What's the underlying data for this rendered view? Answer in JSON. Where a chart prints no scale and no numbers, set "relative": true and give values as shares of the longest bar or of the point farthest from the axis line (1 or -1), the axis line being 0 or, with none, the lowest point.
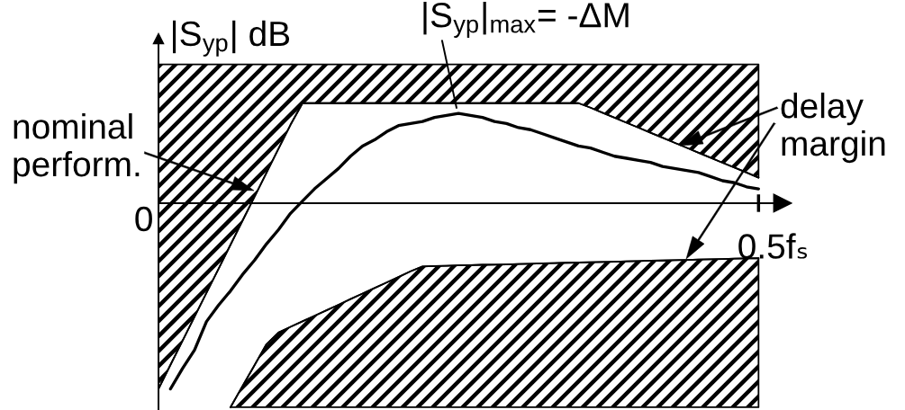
{
  "chart_data": {
    "type": "line",
    "relative": true,
    "ylabel": "|S$_{yp}$| dB",
    "categories": [
      null,
      null,
      null,
      null,
      null,
      null,
      null,
      null,
      null,
      null,
      null,
      null,
      null,
      null,
      null,
      null,
      null,
      null,
      null,
      null,
      null,
      null,
      null,
      null,
      null,
      null,
      null,
      null,
      null,
      null,
      null,
      null,
      null,
      null,
      null,
      null,
      null,
      null,
      null,
      null,
      null,
      null,
      null,
      null,
      null,
      null,
      null,
      null,
      null,
      null,
      null
    ],
    "series": [
      {
        "type": "line",
        "color": "#000000",
        "values": [
          -0.91,
          -0.792,
          -0.675,
          -0.557,
          -0.439,
          -0.322,
          -0.204,
          -0.086,
          0.031,
          0.149,
          0.267,
          0.384,
          0.49,
          0.49,
          0.49,
          0.49,
          0.49,
          0.49,
          0.49,
          0.49,
          0.49,
          0.49,
          0.49,
          0.49,
          0.49,
          0.49,
          0.49,
          0.49,
          0.49,
          0.49,
          0.49,
          0.49,
          0.49,
          0.49,
          0.49,
          0.49,
          0.468,
          0.443,
          0.419,
          0.394,
          0.37,
          0.345,
          0.321,
          0.296,
          0.272,
          0.247,
          0.223,
          0.198,
          0.174,
          0.15,
          0.125
        ],
        "lower": [
          -0.91,
          -0.792,
          -0.675,
          -0.557,
          -0.439,
          -0.322,
          -0.204,
          -0.086,
          0.031,
          0.149,
          0.267,
          0.384,
          0.49,
          0.49,
          0.49,
          0.49,
          0.49,
          0.49,
          0.49,
          0.49,
          0.49,
          0.49,
          0.49,
          0.49,
          0.49,
          0.49,
          0.49,
          0.49,
          0.49,
          0.49,
          0.49,
          0.49,
          0.49,
          0.49,
          0.49,
          0.49,
          0.468,
          0.443,
          0.419,
          0.394,
          0.37,
          0.345,
          0.321,
          0.296,
          0.272,
          0.247,
          0.223,
          0.198,
          0.174,
          0.15,
          0.125
        ],
        "upper": [
          0.68,
          0.68,
          0.68,
          0.68,
          0.68,
          0.68,
          0.68,
          0.68,
          0.68,
          0.68,
          0.68,
          0.68,
          0.68,
          0.68,
          0.68,
          0.68,
          0.68,
          0.68,
          0.68,
          0.68,
          0.68,
          0.68,
          0.68,
          0.68,
          0.68,
          0.68,
          0.68,
          0.68,
          0.68,
          0.68,
          0.68,
          0.68,
          0.68,
          0.68,
          0.68,
          0.68,
          0.68,
          0.68,
          0.68,
          0.68,
          0.68,
          0.68,
          0.68,
          0.68,
          0.68,
          0.68,
          0.68,
          0.68,
          0.68,
          0.68,
          0.68
        ]
      },
      {
        "type": "line",
        "color": "#000000",
        "values": [
          null,
          null,
          null,
          null,
          null,
          null,
          -1,
          -0.897,
          -0.794,
          -0.691,
          -0.634,
          -0.606,
          -0.579,
          -0.552,
          -0.525,
          -0.498,
          -0.47,
          -0.443,
          -0.416,
          -0.389,
          -0.362,
          -0.334,
          -0.31,
          -0.308,
          -0.307,
          -0.305,
          -0.304,
          -0.302,
          -0.301,
          -0.3,
          -0.298,
          -0.297,
          -0.295,
          -0.294,
          -0.292,
          -0.291,
          -0.289,
          -0.288,
          -0.287,
          -0.285,
          -0.284,
          -0.282,
          -0.281,
          -0.279,
          -0.278,
          -0.276,
          -0.275,
          -0.274,
          -0.272,
          -0.271,
          -0.27
        ],
        "lower": [
          null,
          null,
          null,
          null,
          null,
          null,
          -1,
          -1,
          -1,
          -1,
          -1,
          -1,
          -1,
          -1,
          -1,
          -1,
          -1,
          -1,
          -1,
          -1,
          -1,
          -1,
          -1,
          -1,
          -1,
          -1,
          -1,
          -1,
          -1,
          -1,
          -1,
          -1,
          -1,
          -1,
          -1,
          -1,
          -1,
          -1,
          -1,
          -1,
          -1,
          -1,
          -1,
          -1,
          -1,
          -1,
          -1,
          -1,
          -1,
          -1,
          -1
        ],
        "upper": [
          null,
          null,
          null,
          null,
          null,
          null,
          -1,
          -0.897,
          -0.794,
          -0.691,
          -0.634,
          -0.606,
          -0.579,
          -0.552,
          -0.525,
          -0.498,
          -0.47,
          -0.443,
          -0.416,
          -0.389,
          -0.362,
          -0.334,
          -0.31,
          -0.308,
          -0.307,
          -0.305,
          -0.304,
          -0.302,
          -0.301,
          -0.3,
          -0.298,
          -0.297,
          -0.295,
          -0.294,
          -0.292,
          -0.291,
          -0.289,
          -0.288,
          -0.287,
          -0.285,
          -0.284,
          -0.282,
          -0.281,
          -0.279,
          -0.278,
          -0.276,
          -0.275,
          -0.274,
          -0.272,
          -0.271,
          -0.27
        ]
      },
      {
        "type": "line",
        "color": "#000000",
        "values": [
          null,
          -0.91,
          -0.81,
          -0.72,
          -0.58,
          -0.5,
          -0.43,
          -0.35,
          -0.28,
          -0.2,
          -0.13,
          -0.05,
          0.01,
          0.07,
          0.12,
          0.17,
          0.23,
          0.28,
          0.31,
          0.35,
          0.38,
          0.39,
          0.4,
          0.42,
          0.43,
          0.44,
          0.43,
          0.42,
          0.4,
          0.39,
          0.37,
          0.36,
          0.34,
          0.32,
          0.3,
          0.28,
          0.27,
          0.25,
          0.23,
          0.22,
          0.21,
          0.2,
          0.18,
          0.17,
          0.16,
          0.15,
          0.13,
          0.11,
          0.1,
          0.08,
          0.07
        ]
      }
    ],
    "annotations": [
      "|S$_{yp}$|$_{max}$= -ΔM",
      "nominal\nperform.",
      "delay\nmargin",
      "0",
      "0.5fₛ"
    ]
  }
}
